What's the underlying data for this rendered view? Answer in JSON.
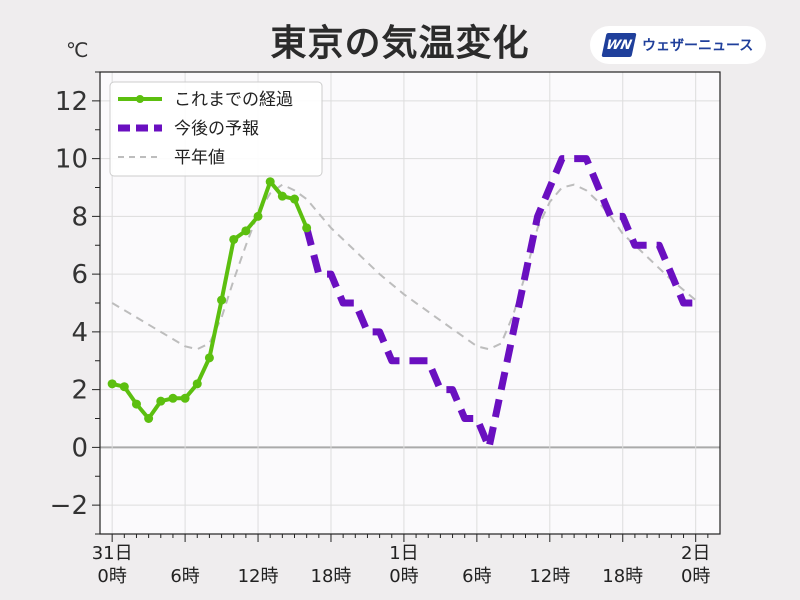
{
  "title": "東京の気温変化",
  "unit": "℃",
  "brand": {
    "name": "ウェザーニュース",
    "logo_text": "WN"
  },
  "chart_data": {
    "type": "line",
    "title": "東京の気温変化",
    "ylabel": "℃",
    "xlim": [
      -1,
      50
    ],
    "ylim": [
      -3,
      13
    ],
    "grid": true,
    "legend_position": "top-left",
    "x_ticks": [
      {
        "x": 0,
        "line1": "31日",
        "line2": "0時"
      },
      {
        "x": 6,
        "line1": "",
        "line2": "6時"
      },
      {
        "x": 12,
        "line1": "",
        "line2": "12時"
      },
      {
        "x": 18,
        "line1": "",
        "line2": "18時"
      },
      {
        "x": 24,
        "line1": "1日",
        "line2": "0時"
      },
      {
        "x": 30,
        "line1": "",
        "line2": "6時"
      },
      {
        "x": 36,
        "line1": "",
        "line2": "12時"
      },
      {
        "x": 42,
        "line1": "",
        "line2": "18時"
      },
      {
        "x": 48,
        "line1": "2日",
        "line2": "0時"
      }
    ],
    "y_ticks": [
      -2,
      0,
      2,
      4,
      6,
      8,
      10,
      12
    ],
    "y_tick_labels": [
      "−2",
      "0",
      "2",
      "4",
      "6",
      "8",
      "10",
      "12"
    ],
    "series": [
      {
        "name": "これまでの経過",
        "style": "solid-markers",
        "color": "#5cbf0f",
        "x": [
          0,
          1,
          2,
          3,
          4,
          5,
          6,
          7,
          8,
          9,
          10,
          11,
          12,
          13,
          14,
          15,
          16
        ],
        "y": [
          2.2,
          2.1,
          1.5,
          1.0,
          1.6,
          1.7,
          1.7,
          2.2,
          3.1,
          5.1,
          7.2,
          7.5,
          8.0,
          9.2,
          8.7,
          8.6,
          7.6
        ]
      },
      {
        "name": "今後の予報",
        "style": "dashed-thick",
        "color": "#6a0fc0",
        "x": [
          16,
          17,
          18,
          19,
          20,
          21,
          22,
          23,
          24,
          25,
          26,
          27,
          28,
          29,
          30,
          31,
          32,
          33,
          34,
          35,
          36,
          37,
          38,
          39,
          40,
          41,
          42,
          43,
          44,
          45,
          46,
          47,
          48
        ],
        "y": [
          7.6,
          6,
          6,
          5,
          5,
          4,
          4,
          3,
          3,
          3,
          3,
          2,
          2,
          1,
          1,
          0,
          2,
          4,
          6,
          8,
          9,
          10,
          10,
          10,
          9,
          8,
          8,
          7,
          7,
          7,
          6,
          5,
          5
        ]
      },
      {
        "name": "平年値",
        "style": "dashed-thin",
        "color": "#bdbdbd",
        "x": [
          0,
          2,
          4,
          6,
          7,
          8,
          9,
          10,
          11,
          12,
          13,
          14,
          15,
          16,
          17,
          18,
          20,
          22,
          24,
          26,
          28,
          30,
          31,
          32,
          33,
          34,
          35,
          36,
          37,
          38,
          39,
          40,
          41,
          42,
          44,
          46,
          48
        ],
        "y": [
          5.0,
          4.5,
          4.0,
          3.5,
          3.4,
          3.6,
          4.5,
          5.8,
          7.0,
          8.1,
          8.8,
          9.1,
          8.9,
          8.6,
          8.1,
          7.6,
          6.8,
          6.0,
          5.3,
          4.7,
          4.1,
          3.5,
          3.4,
          3.6,
          4.6,
          6.0,
          7.6,
          8.5,
          9.0,
          9.1,
          8.9,
          8.5,
          8.0,
          7.4,
          6.6,
          5.8,
          5.1
        ]
      }
    ]
  }
}
